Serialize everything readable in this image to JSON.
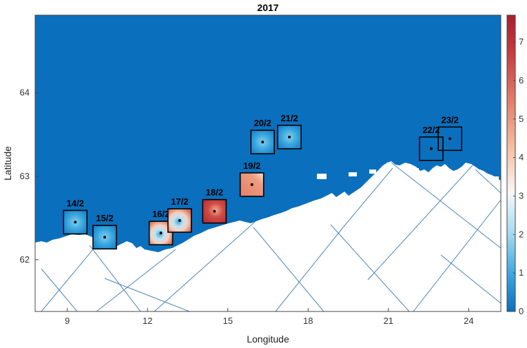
{
  "map": {
    "title": "2017",
    "xlabel": "Longitude",
    "ylabel": "Latitude",
    "x_range": [
      7.8,
      25.2
    ],
    "y_range": [
      61.38,
      64.93
    ],
    "x_ticks": [
      "9",
      "12",
      "15",
      "18",
      "21",
      "24"
    ],
    "y_ticks": [
      "62",
      "63",
      "64"
    ],
    "colorbar": {
      "min": 0,
      "max": 7.7,
      "ticks": [
        "0",
        "1",
        "2",
        "3",
        "4",
        "5",
        "6",
        "7"
      ],
      "colormap": "blue-white-red",
      "colors": [
        "#0a6fbd",
        "#3fa9e0",
        "#a9dcf2",
        "#f7f7f7",
        "#f6c0a3",
        "#e07a66",
        "#c43a3f",
        "#a81f2e"
      ]
    },
    "sea_color": "#0a6fbd",
    "land_color": "#ffffff",
    "track_color": "#4a86b8"
  },
  "boxes": [
    {
      "label": "14/2",
      "lon": 9.3,
      "lat": 62.45,
      "pattern": "low"
    },
    {
      "label": "15/2",
      "lon": 10.4,
      "lat": 62.27,
      "pattern": "low"
    },
    {
      "label": "16/2",
      "lon": 12.5,
      "lat": 62.32,
      "pattern": "ring"
    },
    {
      "label": "17/2",
      "lon": 13.2,
      "lat": 62.47,
      "pattern": "ring"
    },
    {
      "label": "18/2",
      "lon": 14.5,
      "lat": 62.58,
      "pattern": "high"
    },
    {
      "label": "19/2",
      "lon": 15.9,
      "lat": 62.9,
      "pattern": "mid-high"
    },
    {
      "label": "20/2",
      "lon": 16.3,
      "lat": 63.41,
      "pattern": "low"
    },
    {
      "label": "21/2",
      "lon": 17.3,
      "lat": 63.47,
      "pattern": "low"
    },
    {
      "label": "22/2",
      "lon": 22.6,
      "lat": 63.33,
      "pattern": "none"
    },
    {
      "label": "23/2",
      "lon": 23.3,
      "lat": 63.45,
      "pattern": "none"
    }
  ]
}
